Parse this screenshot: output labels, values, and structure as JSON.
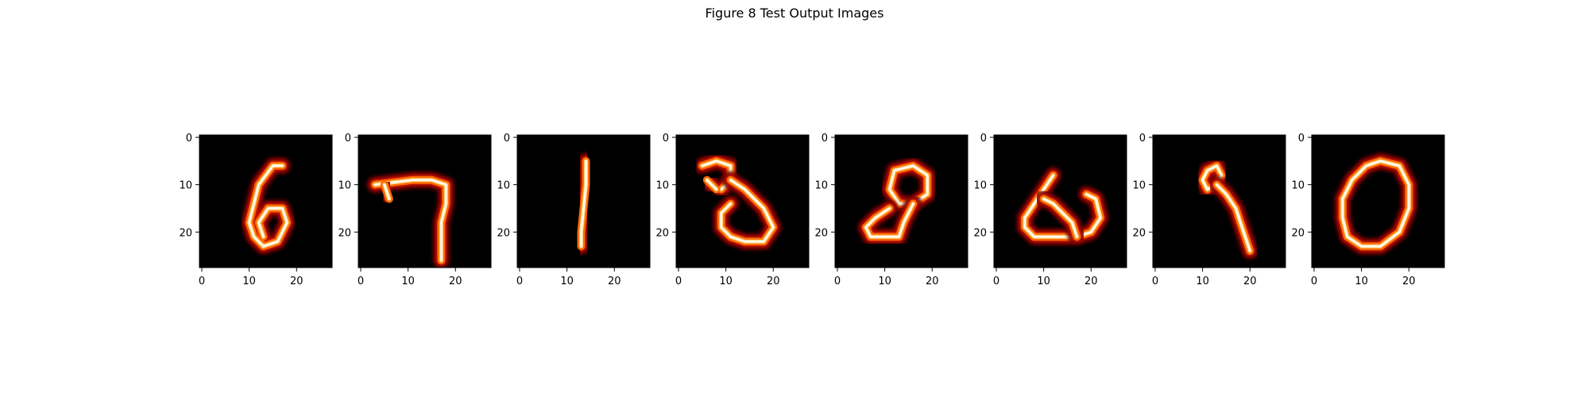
{
  "title": "Figure 8 Test Output Images",
  "colormap": "gist_heat",
  "colors": {
    "background": "#ffffff",
    "axis": "#000000"
  },
  "chart_data": {
    "type": "heatmap",
    "panel_count": 8,
    "image_size": [
      28,
      28
    ],
    "xlim": [
      -0.5,
      27.5
    ],
    "ylim": [
      27.5,
      -0.5
    ],
    "xticks": [
      0,
      10,
      20
    ],
    "yticks": [
      0,
      10,
      20
    ],
    "xtick_labels": [
      "0",
      "10",
      "20"
    ],
    "ytick_labels": [
      "0",
      "10",
      "20"
    ],
    "panels": [
      {
        "digit": "6",
        "strokes": [
          [
            [
              17,
              6
            ],
            [
              15,
              6
            ],
            [
              12,
              10
            ],
            [
              11,
              14
            ],
            [
              10,
              18
            ],
            [
              11,
              21
            ],
            [
              13,
              23
            ],
            [
              16,
              22
            ],
            [
              18,
              18
            ],
            [
              17,
              15
            ],
            [
              14,
              15
            ],
            [
              12,
              18
            ],
            [
              13,
              21
            ]
          ]
        ]
      },
      {
        "digit": "7",
        "strokes": [
          [
            [
              3,
              10
            ],
            [
              7,
              9.5
            ],
            [
              11,
              9
            ],
            [
              15,
              9
            ],
            [
              18,
              10
            ],
            [
              18,
              14
            ],
            [
              17,
              18
            ],
            [
              17,
              22
            ],
            [
              17,
              26
            ]
          ],
          [
            [
              5,
              10
            ],
            [
              6,
              13
            ]
          ]
        ]
      },
      {
        "digit": "1",
        "strokes": [
          [
            [
              14,
              5
            ],
            [
              14,
              10
            ],
            [
              13.5,
              15
            ],
            [
              13,
              20
            ],
            [
              13,
              23
            ]
          ]
        ]
      },
      {
        "digit": "3",
        "strokes": [
          [
            [
              5,
              6
            ],
            [
              8,
              5
            ],
            [
              11,
              6
            ],
            [
              11,
              9
            ],
            [
              9,
              11
            ]
          ],
          [
            [
              6,
              9
            ],
            [
              8,
              11
            ]
          ],
          [
            [
              11,
              9
            ],
            [
              14,
              11
            ],
            [
              18,
              15
            ],
            [
              20,
              19
            ],
            [
              18,
              22
            ],
            [
              14,
              22
            ],
            [
              11,
              21
            ],
            [
              9,
              19
            ],
            [
              9,
              16
            ],
            [
              11,
              14
            ]
          ]
        ]
      },
      {
        "digit": "8",
        "strokes": [
          [
            [
              12,
              7
            ],
            [
              16,
              6
            ],
            [
              19,
              8
            ],
            [
              19,
              12
            ],
            [
              16,
              14
            ],
            [
              13,
              14
            ],
            [
              11,
              11
            ],
            [
              12,
              7
            ]
          ],
          [
            [
              16,
              14
            ],
            [
              14,
              18
            ],
            [
              13,
              21
            ],
            [
              10,
              21
            ],
            [
              7,
              21
            ],
            [
              6,
              19
            ],
            [
              8,
              17
            ],
            [
              11,
              15
            ]
          ]
        ]
      },
      {
        "digit": "2",
        "strokes": [
          [
            [
              12,
              8
            ],
            [
              10,
              11
            ],
            [
              8,
              14
            ],
            [
              6,
              17
            ],
            [
              6,
              19
            ],
            [
              8,
              21
            ],
            [
              12,
              21
            ],
            [
              17,
              21
            ],
            [
              20,
              20
            ],
            [
              22,
              17
            ],
            [
              21,
              13
            ],
            [
              19,
              12
            ]
          ],
          [
            [
              10,
              13
            ],
            [
              12,
              14
            ],
            [
              14,
              16
            ],
            [
              16,
              18
            ],
            [
              17,
              21
            ]
          ]
        ]
      },
      {
        "digit": "9",
        "strokes": [
          [
            [
              11,
              7
            ],
            [
              13,
              6
            ],
            [
              14,
              8
            ],
            [
              13,
              10
            ],
            [
              11,
              11
            ],
            [
              10,
              9
            ],
            [
              11,
              7
            ]
          ],
          [
            [
              13,
              10
            ],
            [
              15,
              12
            ],
            [
              17,
              15
            ],
            [
              18,
              18
            ],
            [
              19,
              21
            ],
            [
              20,
              24
            ]
          ]
        ]
      },
      {
        "digit": "0",
        "strokes": [
          [
            [
              14,
              5
            ],
            [
              11,
              6
            ],
            [
              8,
              9
            ],
            [
              6,
              13
            ],
            [
              6,
              17
            ],
            [
              7,
              21
            ],
            [
              10,
              23
            ],
            [
              14,
              23
            ],
            [
              18,
              20
            ],
            [
              20,
              15
            ],
            [
              20,
              10
            ],
            [
              18,
              6
            ],
            [
              14,
              5
            ]
          ]
        ]
      }
    ]
  }
}
